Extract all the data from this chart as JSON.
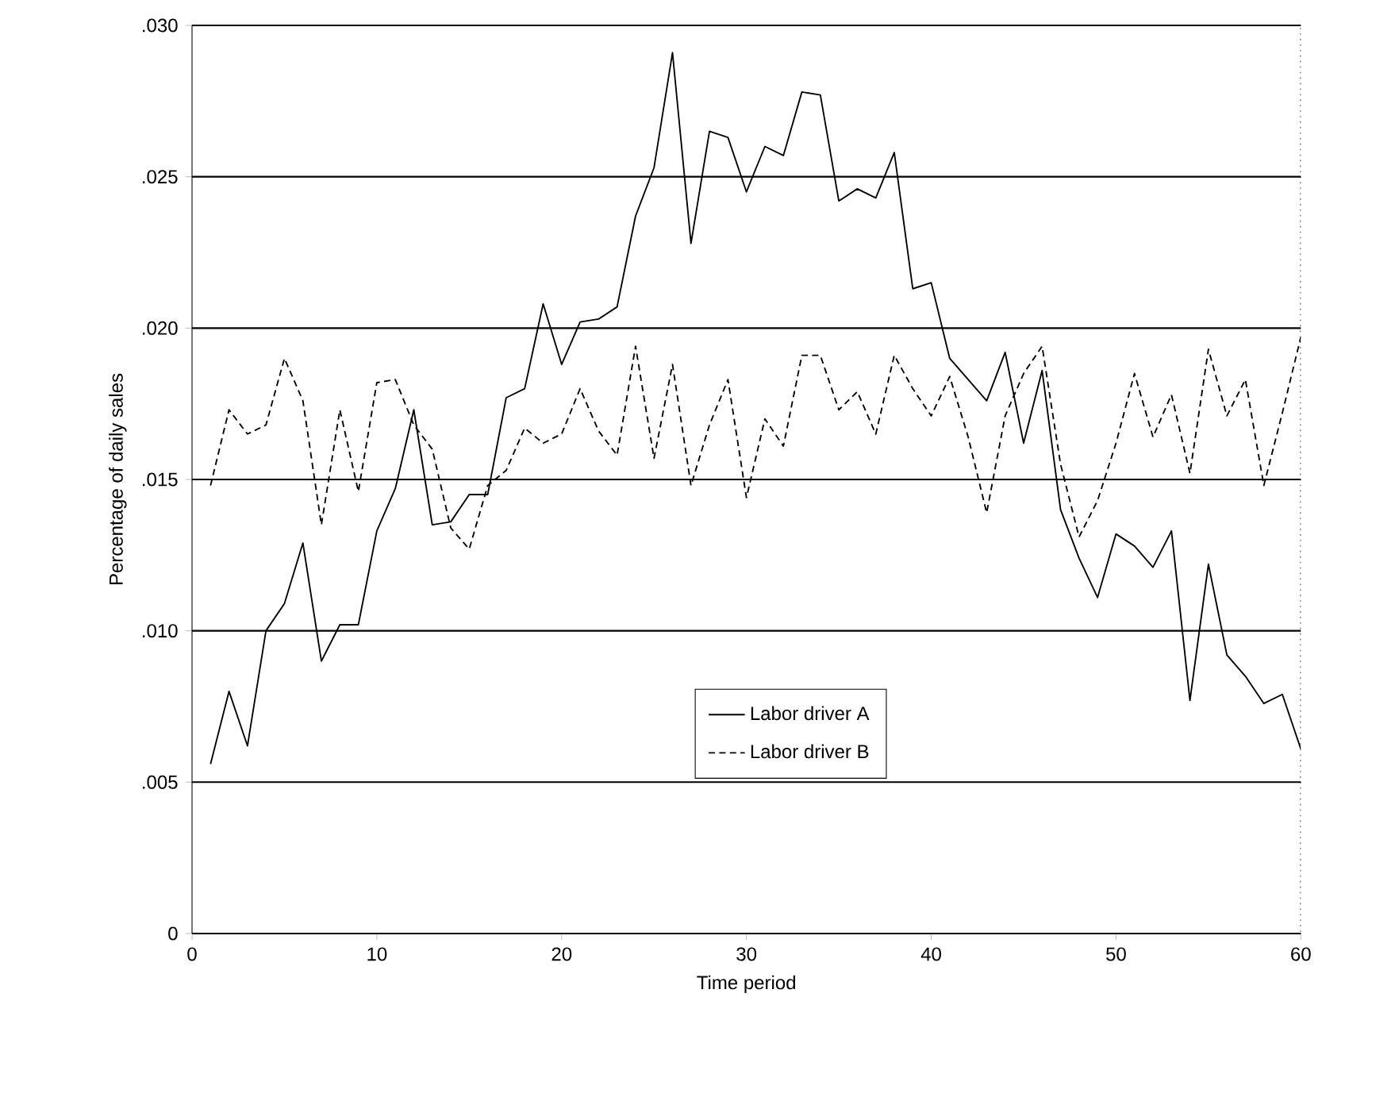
{
  "chart_data": {
    "type": "line",
    "xlabel": "Time period",
    "ylabel": "Percentage of daily sales",
    "x": [
      1,
      2,
      3,
      4,
      5,
      6,
      7,
      8,
      9,
      10,
      11,
      12,
      13,
      14,
      15,
      16,
      17,
      18,
      19,
      20,
      21,
      22,
      23,
      24,
      25,
      26,
      27,
      28,
      29,
      30,
      31,
      32,
      33,
      34,
      35,
      36,
      37,
      38,
      39,
      40,
      41,
      42,
      43,
      44,
      45,
      46,
      47,
      48,
      49,
      50,
      51,
      52,
      53,
      54,
      55,
      56,
      57,
      58,
      59,
      60
    ],
    "series": [
      {
        "name": "Labor driver A",
        "color": "#000000",
        "line_style": "solid",
        "values": [
          0.0056,
          0.008,
          0.0062,
          0.01,
          0.0109,
          0.0129,
          0.009,
          0.0102,
          0.0102,
          0.0133,
          0.0147,
          0.0173,
          0.0135,
          0.0136,
          0.0145,
          0.0145,
          0.0177,
          0.018,
          0.0208,
          0.0188,
          0.0202,
          0.0203,
          0.0207,
          0.0237,
          0.0253,
          0.0291,
          0.0228,
          0.0265,
          0.0263,
          0.0245,
          0.026,
          0.0257,
          0.0278,
          0.0277,
          0.0242,
          0.0246,
          0.0243,
          0.0258,
          0.0213,
          0.0215,
          0.019,
          0.0183,
          0.0176,
          0.0192,
          0.0162,
          0.0186,
          0.014,
          0.0124,
          0.0111,
          0.0132,
          0.0128,
          0.0121,
          0.0133,
          0.0077,
          0.0122,
          0.0092,
          0.0085,
          0.0076,
          0.0079,
          0.0061
        ]
      },
      {
        "name": "Labor driver B",
        "color": "#000000",
        "line_style": "dashed",
        "values": [
          0.0148,
          0.0173,
          0.0165,
          0.0168,
          0.019,
          0.0176,
          0.0135,
          0.0173,
          0.0146,
          0.0182,
          0.0183,
          0.0168,
          0.016,
          0.0134,
          0.0127,
          0.0148,
          0.0153,
          0.0167,
          0.0162,
          0.0165,
          0.018,
          0.0166,
          0.0158,
          0.0194,
          0.0157,
          0.0188,
          0.0148,
          0.0168,
          0.0183,
          0.0144,
          0.017,
          0.0161,
          0.0191,
          0.0191,
          0.0173,
          0.0179,
          0.0165,
          0.0191,
          0.018,
          0.0171,
          0.0184,
          0.0164,
          0.0139,
          0.0171,
          0.0185,
          0.0194,
          0.0155,
          0.0131,
          0.0143,
          0.0162,
          0.0185,
          0.0164,
          0.0178,
          0.0152,
          0.0193,
          0.0171,
          0.0183,
          0.0148,
          0.0172,
          0.0197
        ]
      }
    ],
    "xlim": [
      0,
      60
    ],
    "ylim": [
      0,
      0.03
    ],
    "xticks": [
      0,
      10,
      20,
      30,
      40,
      50,
      60
    ],
    "yticks": [
      0,
      {
        "value": 0.005,
        "label": ".005"
      },
      {
        "value": 0.01,
        "label": ".010"
      },
      {
        "value": 0.015,
        "label": ".015"
      },
      {
        "value": 0.02,
        "label": ".020"
      },
      {
        "value": 0.025,
        "label": ".025"
      },
      {
        "value": 0.03,
        "label": ".030"
      }
    ],
    "grid": "y",
    "legend": "bottom",
    "marker": "none"
  }
}
